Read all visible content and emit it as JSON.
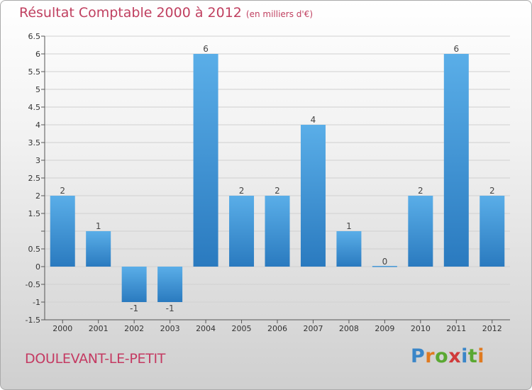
{
  "header": {
    "title": "Résultat Comptable 2000 à 2012",
    "subtitle": "(en milliers d'€)"
  },
  "footer": {
    "city": "DOULEVANT-LE-PETIT",
    "logo": [
      "P",
      "r",
      "o",
      "x",
      "i",
      "t",
      "i"
    ]
  },
  "colors": {
    "bar_top": "#5aaee8",
    "bar_bottom": "#2a7abf",
    "axis": "#555555",
    "grid": "#d0d0d0",
    "title": "#c04060"
  },
  "chart_data": {
    "type": "bar",
    "title": "Résultat Comptable 2000 à 2012",
    "subtitle": "(en milliers d'€)",
    "categories": [
      "2000",
      "2001",
      "2002",
      "2003",
      "2004",
      "2005",
      "2006",
      "2007",
      "2008",
      "2009",
      "2010",
      "2011",
      "2012"
    ],
    "values": [
      2,
      1,
      -1,
      -1,
      6,
      2,
      2,
      4,
      1,
      0,
      2,
      6,
      2
    ],
    "labels": [
      "2",
      "1",
      "-1",
      "-1",
      "6",
      "2",
      "2",
      "4",
      "1",
      "0",
      "2",
      "6",
      "2"
    ],
    "yticks": [
      "6.5",
      "6",
      "5.5",
      "5",
      "4.5",
      "4",
      "3.5",
      "3",
      "2.5",
      "2",
      "1.5",
      "",
      "0.5",
      "0",
      "-0.5",
      "-1",
      "-1.5"
    ],
    "ytick_values": [
      6.5,
      6,
      5.5,
      5,
      4.5,
      4,
      3.5,
      3,
      2.5,
      2,
      1.5,
      1,
      0.5,
      0,
      -0.5,
      -1,
      -1.5
    ],
    "ylim": [
      -1.5,
      6.5
    ],
    "xlabel": "",
    "ylabel": "",
    "grid": true
  }
}
